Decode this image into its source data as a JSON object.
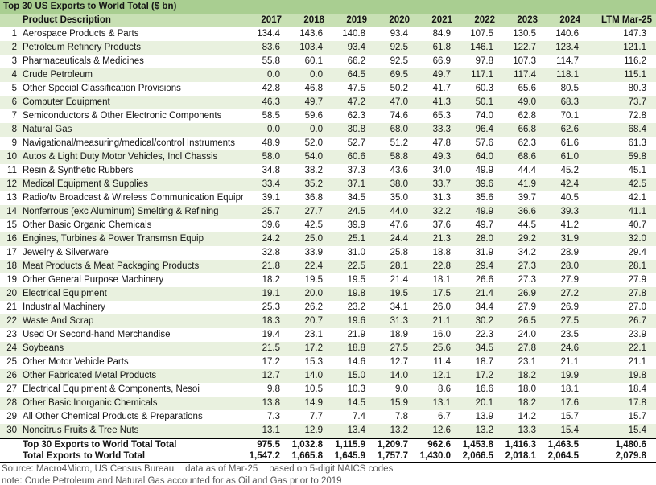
{
  "chart_data": {
    "type": "table",
    "title": "Top 30 US Exports to World Total ($ bn)",
    "columns": [
      "Product Description",
      "2017",
      "2018",
      "2019",
      "2020",
      "2021",
      "2022",
      "2023",
      "2024",
      "LTM Mar-25"
    ],
    "rows": [
      {
        "rank": "1",
        "name": "Aerospace Products & Parts",
        "values": [
          "134.4",
          "143.6",
          "140.8",
          "93.4",
          "84.9",
          "107.5",
          "130.5",
          "140.6",
          "147.3"
        ]
      },
      {
        "rank": "2",
        "name": "Petroleum Refinery Products",
        "values": [
          "83.6",
          "103.4",
          "93.4",
          "92.5",
          "61.8",
          "146.1",
          "122.7",
          "123.4",
          "121.1"
        ]
      },
      {
        "rank": "3",
        "name": "Pharmaceuticals & Medicines",
        "values": [
          "55.8",
          "60.1",
          "66.2",
          "92.5",
          "66.9",
          "97.8",
          "107.3",
          "114.7",
          "116.2"
        ]
      },
      {
        "rank": "4",
        "name": "Crude Petroleum",
        "values": [
          "0.0",
          "0.0",
          "64.5",
          "69.5",
          "49.7",
          "117.1",
          "117.4",
          "118.1",
          "115.1"
        ]
      },
      {
        "rank": "5",
        "name": "Other Special Classification Provisions",
        "values": [
          "42.8",
          "46.8",
          "47.5",
          "50.2",
          "41.7",
          "60.3",
          "65.6",
          "80.5",
          "80.3"
        ]
      },
      {
        "rank": "6",
        "name": "Computer Equipment",
        "values": [
          "46.3",
          "49.7",
          "47.2",
          "47.0",
          "41.3",
          "50.1",
          "49.0",
          "68.3",
          "73.7"
        ]
      },
      {
        "rank": "7",
        "name": "Semiconductors & Other Electronic Components",
        "values": [
          "58.5",
          "59.6",
          "62.3",
          "74.6",
          "65.3",
          "74.0",
          "62.8",
          "70.1",
          "72.8"
        ]
      },
      {
        "rank": "8",
        "name": "Natural Gas",
        "values": [
          "0.0",
          "0.0",
          "30.8",
          "68.0",
          "33.3",
          "96.4",
          "66.8",
          "62.6",
          "68.4"
        ]
      },
      {
        "rank": "9",
        "name": "Navigational/measuring/medical/control Instruments",
        "values": [
          "48.9",
          "52.0",
          "52.7",
          "51.2",
          "47.8",
          "57.6",
          "62.3",
          "61.6",
          "61.3"
        ]
      },
      {
        "rank": "10",
        "name": "Autos & Light Duty Motor Vehicles, Incl Chassis",
        "values": [
          "58.0",
          "54.0",
          "60.6",
          "58.8",
          "49.3",
          "64.0",
          "68.6",
          "61.0",
          "59.8"
        ]
      },
      {
        "rank": "11",
        "name": "Resin & Synthetic Rubbers",
        "values": [
          "34.8",
          "38.2",
          "37.3",
          "43.6",
          "34.0",
          "49.9",
          "44.4",
          "45.2",
          "45.1"
        ]
      },
      {
        "rank": "12",
        "name": "Medical Equipment & Supplies",
        "values": [
          "33.4",
          "35.2",
          "37.1",
          "38.0",
          "33.7",
          "39.6",
          "41.9",
          "42.4",
          "42.5"
        ]
      },
      {
        "rank": "13",
        "name": "Radio/tv Broadcast & Wireless Communication Equipment",
        "values": [
          "39.1",
          "36.8",
          "34.5",
          "35.0",
          "31.3",
          "35.6",
          "39.7",
          "40.5",
          "42.1"
        ]
      },
      {
        "rank": "14",
        "name": "Nonferrous (exc Aluminum) Smelting & Refining",
        "values": [
          "25.7",
          "27.7",
          "24.5",
          "44.0",
          "32.2",
          "49.9",
          "36.6",
          "39.3",
          "41.1"
        ]
      },
      {
        "rank": "15",
        "name": "Other Basic Organic Chemicals",
        "values": [
          "39.6",
          "42.5",
          "39.9",
          "47.6",
          "37.6",
          "49.7",
          "44.5",
          "41.2",
          "40.7"
        ]
      },
      {
        "rank": "16",
        "name": "Engines, Turbines & Power Transmsn Equip",
        "values": [
          "24.2",
          "25.0",
          "25.1",
          "24.4",
          "21.3",
          "28.0",
          "29.2",
          "31.9",
          "32.0"
        ]
      },
      {
        "rank": "17",
        "name": "Jewelry & Silverware",
        "values": [
          "32.8",
          "33.9",
          "31.0",
          "25.8",
          "18.8",
          "31.9",
          "34.2",
          "28.9",
          "29.4"
        ]
      },
      {
        "rank": "18",
        "name": "Meat Products & Meat Packaging Products",
        "values": [
          "21.8",
          "22.4",
          "22.5",
          "28.1",
          "22.8",
          "29.4",
          "27.3",
          "28.0",
          "28.1"
        ]
      },
      {
        "rank": "19",
        "name": "Other General Purpose Machinery",
        "values": [
          "18.2",
          "19.5",
          "19.5",
          "21.4",
          "18.1",
          "26.6",
          "27.3",
          "27.9",
          "27.9"
        ]
      },
      {
        "rank": "20",
        "name": "Electrical Equipment",
        "values": [
          "19.1",
          "20.0",
          "19.8",
          "19.5",
          "17.5",
          "21.4",
          "26.9",
          "27.2",
          "27.8"
        ]
      },
      {
        "rank": "21",
        "name": "Industrial Machinery",
        "values": [
          "25.3",
          "26.2",
          "23.2",
          "34.1",
          "26.0",
          "34.4",
          "27.9",
          "26.9",
          "27.0"
        ]
      },
      {
        "rank": "22",
        "name": "Waste And Scrap",
        "values": [
          "18.3",
          "20.7",
          "19.6",
          "31.3",
          "21.1",
          "30.2",
          "26.5",
          "27.5",
          "26.7"
        ]
      },
      {
        "rank": "23",
        "name": "Used Or Second-hand Merchandise",
        "values": [
          "19.4",
          "23.1",
          "21.9",
          "18.9",
          "16.0",
          "22.3",
          "24.0",
          "23.5",
          "23.9"
        ]
      },
      {
        "rank": "24",
        "name": "Soybeans",
        "values": [
          "21.5",
          "17.2",
          "18.8",
          "27.5",
          "25.6",
          "34.5",
          "27.8",
          "24.6",
          "22.1"
        ]
      },
      {
        "rank": "25",
        "name": "Other Motor Vehicle Parts",
        "values": [
          "17.2",
          "15.3",
          "14.6",
          "12.7",
          "11.4",
          "18.7",
          "23.1",
          "21.1",
          "21.1"
        ]
      },
      {
        "rank": "26",
        "name": "Other Fabricated Metal Products",
        "values": [
          "12.7",
          "14.0",
          "15.0",
          "14.0",
          "12.1",
          "17.2",
          "18.2",
          "19.9",
          "19.8"
        ]
      },
      {
        "rank": "27",
        "name": "Electrical Equipment & Components, Nesoi",
        "values": [
          "9.8",
          "10.5",
          "10.3",
          "9.0",
          "8.6",
          "16.6",
          "18.0",
          "18.1",
          "18.4"
        ]
      },
      {
        "rank": "28",
        "name": "Other Basic Inorganic Chemicals",
        "values": [
          "13.8",
          "14.9",
          "14.5",
          "15.9",
          "13.1",
          "20.1",
          "18.2",
          "17.6",
          "17.8"
        ]
      },
      {
        "rank": "29",
        "name": "All Other Chemical Products & Preparations",
        "values": [
          "7.3",
          "7.7",
          "7.4",
          "7.8",
          "6.7",
          "13.9",
          "14.2",
          "15.7",
          "15.7"
        ]
      },
      {
        "rank": "30",
        "name": "Noncitrus Fruits & Tree Nuts",
        "values": [
          "13.1",
          "12.9",
          "13.4",
          "13.2",
          "12.6",
          "13.2",
          "13.3",
          "15.4",
          "15.4"
        ]
      }
    ],
    "totals": [
      {
        "name": "Top 30 Exports to World Total Total",
        "values": [
          "975.5",
          "1,032.8",
          "1,115.9",
          "1,209.7",
          "962.6",
          "1,453.8",
          "1,416.3",
          "1,463.5",
          "1,480.6"
        ]
      },
      {
        "name": "Total Exports to World Total",
        "values": [
          "1,547.2",
          "1,665.8",
          "1,645.9",
          "1,757.7",
          "1,430.0",
          "2,066.5",
          "2,018.1",
          "2,064.5",
          "2,079.8"
        ]
      }
    ]
  },
  "footer": {
    "source": "Source: Macro4Micro, US Census Bureau",
    "as_of": "data as of Mar-25",
    "basis": "based on 5-digit NAICS codes",
    "note": "note: Crude Petroleum and Natural Gas accounted for as Oil and Gas prior to 2019"
  },
  "colors": {
    "title_bg": "#A9CE91",
    "header_bg": "#C8E0B4",
    "stripe_bg": "#E9F1DF",
    "footer_text": "#595959",
    "text": "#151515"
  }
}
